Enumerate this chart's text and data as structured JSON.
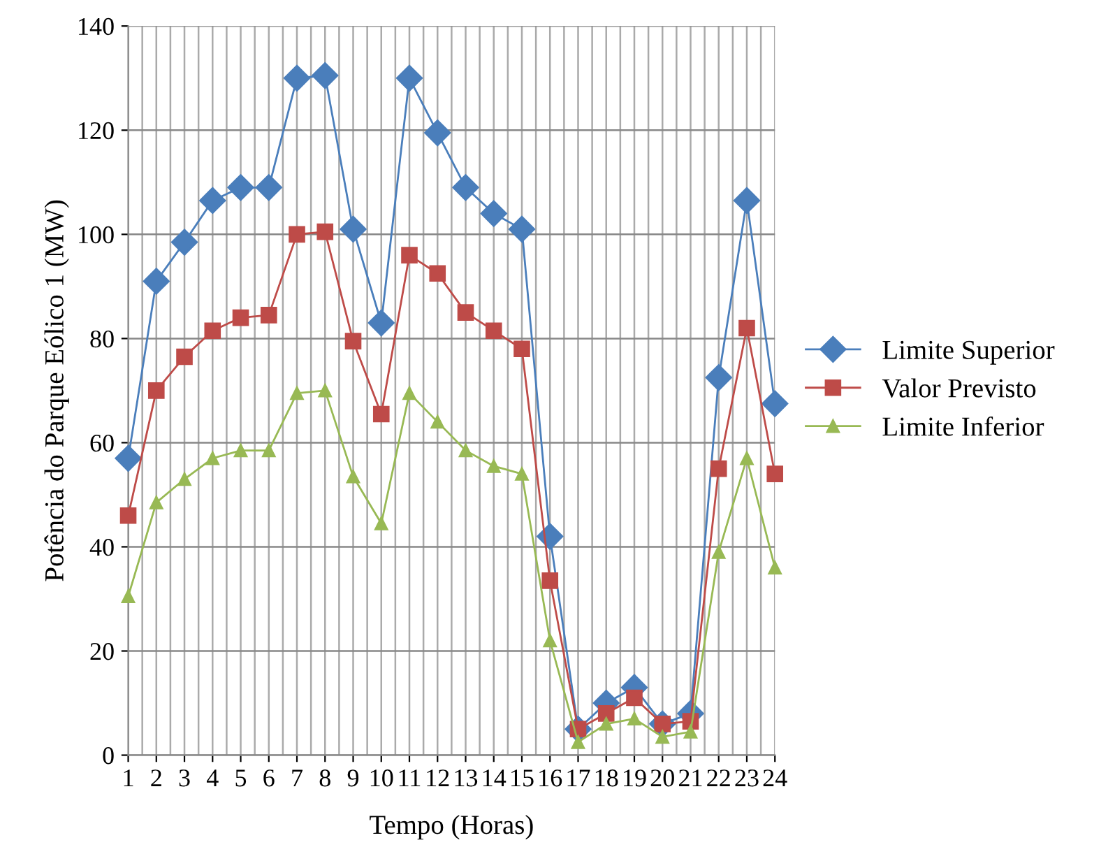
{
  "chart_data": {
    "type": "line",
    "xlabel": "Tempo (Horas)",
    "ylabel": "Potência do Parque Eólico 1 (MW)",
    "categories": [
      "1",
      "2",
      "3",
      "4",
      "5",
      "6",
      "7",
      "8",
      "9",
      "10",
      "11",
      "12",
      "13",
      "14",
      "15",
      "16",
      "17",
      "18",
      "19",
      "20",
      "21",
      "22",
      "23",
      "24"
    ],
    "ylim": [
      0,
      140
    ],
    "yticks": [
      0,
      20,
      40,
      60,
      80,
      100,
      120,
      140
    ],
    "grid": true,
    "legend": "right",
    "series": [
      {
        "name": "Limite Superior",
        "color": "#4a7ebb",
        "marker": "diamond",
        "values": [
          57,
          91,
          98.5,
          106.5,
          109,
          109,
          130,
          130.5,
          101,
          83,
          130,
          119.5,
          109,
          104,
          101,
          42,
          5,
          10,
          13,
          6,
          8,
          72.5,
          106.5,
          67.5
        ]
      },
      {
        "name": "Valor Previsto",
        "color": "#be4b48",
        "marker": "square",
        "values": [
          46,
          70,
          76.5,
          81.5,
          84,
          84.5,
          100,
          100.5,
          79.5,
          65.5,
          96,
          92.5,
          85,
          81.5,
          78,
          33.5,
          5,
          8,
          11,
          6,
          6.5,
          55,
          82,
          54
        ]
      },
      {
        "name": "Limite Inferior",
        "color": "#98b954",
        "marker": "triangle",
        "values": [
          30.5,
          48.5,
          53,
          57,
          58.5,
          58.5,
          69.5,
          70,
          53.5,
          44.5,
          69.5,
          64,
          58.5,
          55.5,
          54,
          22,
          2.5,
          6,
          7,
          3.5,
          4.5,
          39,
          57,
          36
        ]
      }
    ]
  }
}
